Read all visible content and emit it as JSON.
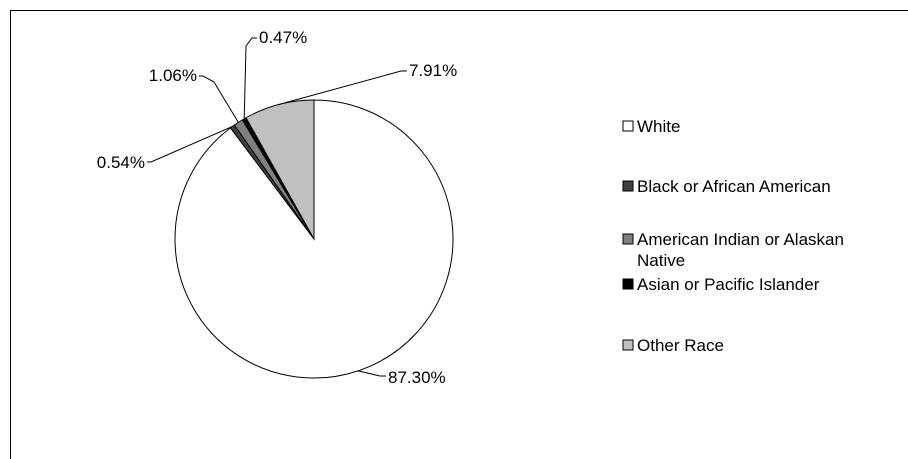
{
  "chart_data": {
    "type": "pie",
    "title": "",
    "start_angle_deg": 0,
    "direction": "clockwise",
    "slices": [
      {
        "name": "White",
        "value": 87.3,
        "label": "87.30%",
        "color": "#ffffff"
      },
      {
        "name": "Black or African American",
        "value": 0.54,
        "label": "0.54%",
        "color": "#404040"
      },
      {
        "name": "American Indian or Alaskan Native",
        "value": 1.06,
        "label": "1.06%",
        "color": "#808080"
      },
      {
        "name": "Asian or Pacific Islander",
        "value": 0.47,
        "label": "0.47%",
        "color": "#000000"
      },
      {
        "name": "Other Race",
        "value": 7.91,
        "label": "7.91%",
        "color": "#c0c0c0"
      }
    ],
    "legend": {
      "placement": "right",
      "entries": [
        {
          "lines": [
            "White"
          ],
          "color": "#ffffff"
        },
        {
          "lines": [
            "Black or African American"
          ],
          "color": "#404040"
        },
        {
          "lines": [
            "American Indian or Alaskan",
            "Native"
          ],
          "color": "#808080"
        },
        {
          "lines": [
            "Asian or Pacific Islander"
          ],
          "color": "#000000"
        },
        {
          "lines": [
            "Other Race"
          ],
          "color": "#c0c0c0"
        }
      ]
    }
  }
}
